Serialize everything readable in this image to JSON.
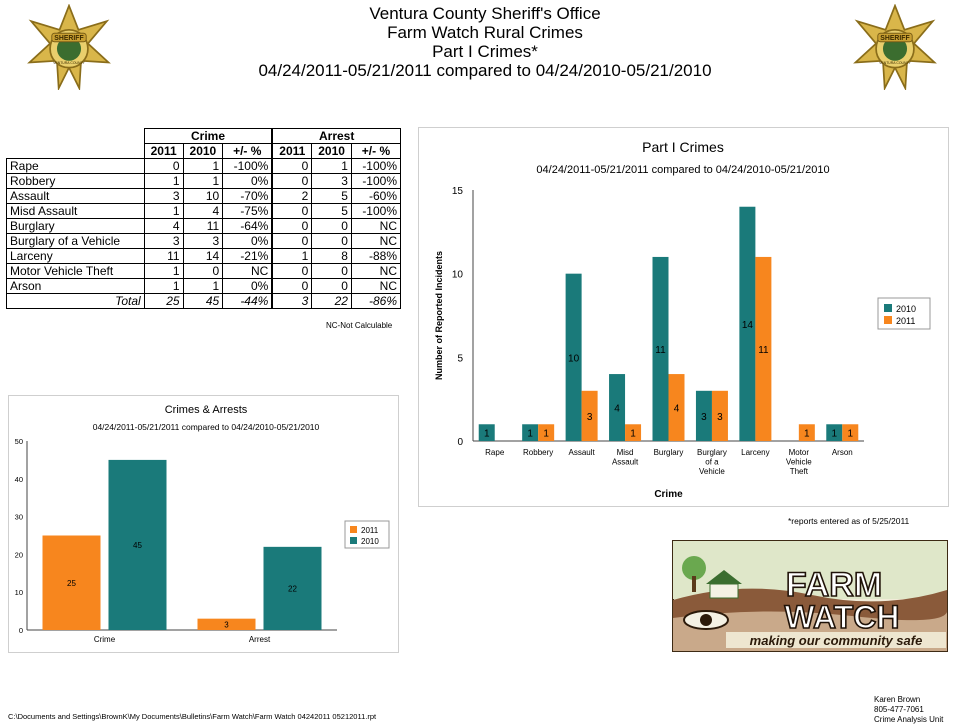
{
  "header": {
    "line1": "Ventura County Sheriff's Office",
    "line2": "Farm Watch Rural Crimes",
    "line3": "Part I Crimes*",
    "line4": "04/24/2011-05/21/2011 compared to 04/24/2010-05/21/2010"
  },
  "badge": {
    "text": "SHERIFF",
    "ring_text": "VENTURA COUNTY"
  },
  "table": {
    "group_headers": [
      "Crime",
      "Arrest"
    ],
    "sub_headers": [
      "2011",
      "2010",
      "+/- %",
      "2011",
      "2010",
      "+/- %"
    ],
    "rows": [
      [
        "Rape",
        "0",
        "1",
        "-100%",
        "0",
        "1",
        "-100%"
      ],
      [
        "Robbery",
        "1",
        "1",
        "0%",
        "0",
        "3",
        "-100%"
      ],
      [
        "Assault",
        "3",
        "10",
        "-70%",
        "2",
        "5",
        "-60%"
      ],
      [
        "Misd  Assault",
        "1",
        "4",
        "-75%",
        "0",
        "5",
        "-100%"
      ],
      [
        "Burglary",
        "4",
        "11",
        "-64%",
        "0",
        "0",
        "NC"
      ],
      [
        "Burglary of a Vehicle",
        "3",
        "3",
        "0%",
        "0",
        "0",
        "NC"
      ],
      [
        "Larceny",
        "11",
        "14",
        "-21%",
        "1",
        "8",
        "-88%"
      ],
      [
        "Motor Vehicle Theft",
        "1",
        "0",
        "NC",
        "0",
        "0",
        "NC"
      ],
      [
        "Arson",
        "1",
        "1",
        "0%",
        "0",
        "0",
        "NC"
      ]
    ],
    "total": [
      "Total",
      "25",
      "45",
      "-44%",
      "3",
      "22",
      "-86%"
    ],
    "note": "NC-Not Calculable"
  },
  "chart_data": [
    {
      "type": "bar",
      "title": "Part I Crimes",
      "subtitle": "04/24/2011-05/21/2011 compared to 04/24/2010-05/21/2010",
      "xlabel": "Crime",
      "ylabel": "Number of Reported Incidents",
      "ylim": [
        0,
        15
      ],
      "yticks": [
        0,
        5,
        10,
        15
      ],
      "categories": [
        "Rape",
        "Robbery",
        "Assault",
        "Misd Assault",
        "Burglary",
        "Burglary of a Vehicle",
        "Larceny",
        "Motor Vehicle Theft",
        "Arson"
      ],
      "category_lines": [
        [
          "Rape"
        ],
        [
          "Robbery"
        ],
        [
          "Assault"
        ],
        [
          "Misd",
          "Assault"
        ],
        [
          "Burglary"
        ],
        [
          "Burglary",
          "of a",
          "Vehicle"
        ],
        [
          "Larceny"
        ],
        [
          "Motor",
          "Vehicle",
          "Theft"
        ],
        [
          "Arson"
        ]
      ],
      "series": [
        {
          "name": "2010",
          "color": "#1a7a7a",
          "values": [
            1,
            1,
            10,
            4,
            11,
            3,
            14,
            0,
            1
          ]
        },
        {
          "name": "2011",
          "color": "#f7861e",
          "values": [
            0,
            1,
            3,
            1,
            4,
            3,
            11,
            1,
            1
          ]
        }
      ],
      "legend": "right"
    },
    {
      "type": "bar",
      "title": "Crimes & Arrests",
      "subtitle": "04/24/2011-05/21/2011 compared to 04/24/2010-05/21/2010",
      "ylim": [
        0,
        50
      ],
      "yticks": [
        0,
        10,
        20,
        30,
        40,
        50
      ],
      "categories": [
        "Crime",
        "Arrest"
      ],
      "series": [
        {
          "name": "2011",
          "color": "#f7861e",
          "values": [
            25,
            3
          ]
        },
        {
          "name": "2010",
          "color": "#1a7a7a",
          "values": [
            45,
            22
          ]
        }
      ],
      "legend": "right"
    }
  ],
  "reports_note": "*reports entered as of 5/25/2011",
  "logo": {
    "line1": "FARM",
    "line2": "WATCH",
    "tagline": "making our community safe"
  },
  "footer_path": "C:\\Documents and Settings\\BrownK\\My Documents\\Bulletins\\Farm Watch\\Farm Watch 04242011 05212011.rpt",
  "credits": {
    "name": "Karen Brown",
    "phone": "805-477-7061",
    "unit": "Crime Analysis Unit"
  }
}
